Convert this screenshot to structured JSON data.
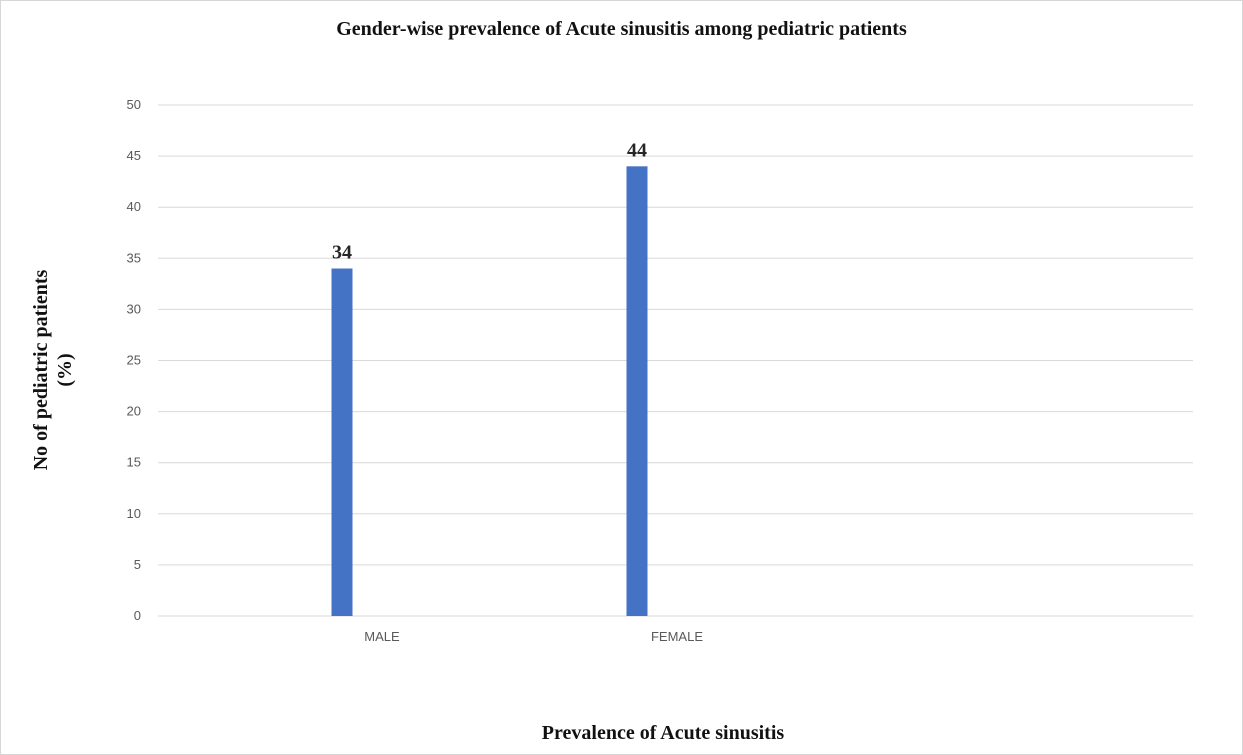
{
  "chart_data": {
    "type": "bar",
    "title": "Gender-wise prevalence of Acute sinusitis among pediatric patients",
    "xlabel": "Prevalence of Acute sinusitis",
    "ylabel_line1": "No of pediatric patients",
    "ylabel_line2": "(%)",
    "categories": [
      "MALE",
      "FEMALE"
    ],
    "values": [
      34,
      44
    ],
    "data_labels": [
      "34",
      "44"
    ],
    "ylim": [
      0,
      50
    ],
    "yticks": [
      0,
      5,
      10,
      15,
      20,
      25,
      30,
      35,
      40,
      45,
      50
    ],
    "grid": true,
    "bar_color": "#4472c4",
    "grid_color": "#d9d9d9"
  }
}
